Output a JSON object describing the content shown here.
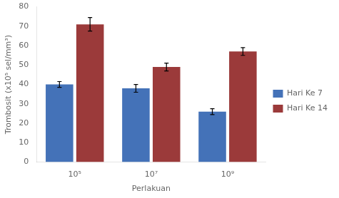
{
  "chart_data": {
    "type": "bar",
    "xlabel": "Perlakuan",
    "ylabel": "Trombosit (x10⁵ sel/mm³)",
    "categories": [
      "10⁵",
      "10⁷",
      "10⁹"
    ],
    "series": [
      {
        "name": "Hari Ke 7",
        "color": "#4472b8",
        "values": [
          40,
          38,
          26
        ],
        "errors": [
          1.5,
          2.0,
          1.5
        ]
      },
      {
        "name": "Hari Ke 14",
        "color": "#9b3a3a",
        "values": [
          71,
          49,
          57
        ],
        "errors": [
          3.5,
          2.0,
          2.0
        ]
      }
    ],
    "ylim": [
      0,
      80
    ],
    "yticks": [
      0,
      10,
      20,
      30,
      40,
      50,
      60,
      70,
      80
    ],
    "legend": "right",
    "grid": false
  }
}
